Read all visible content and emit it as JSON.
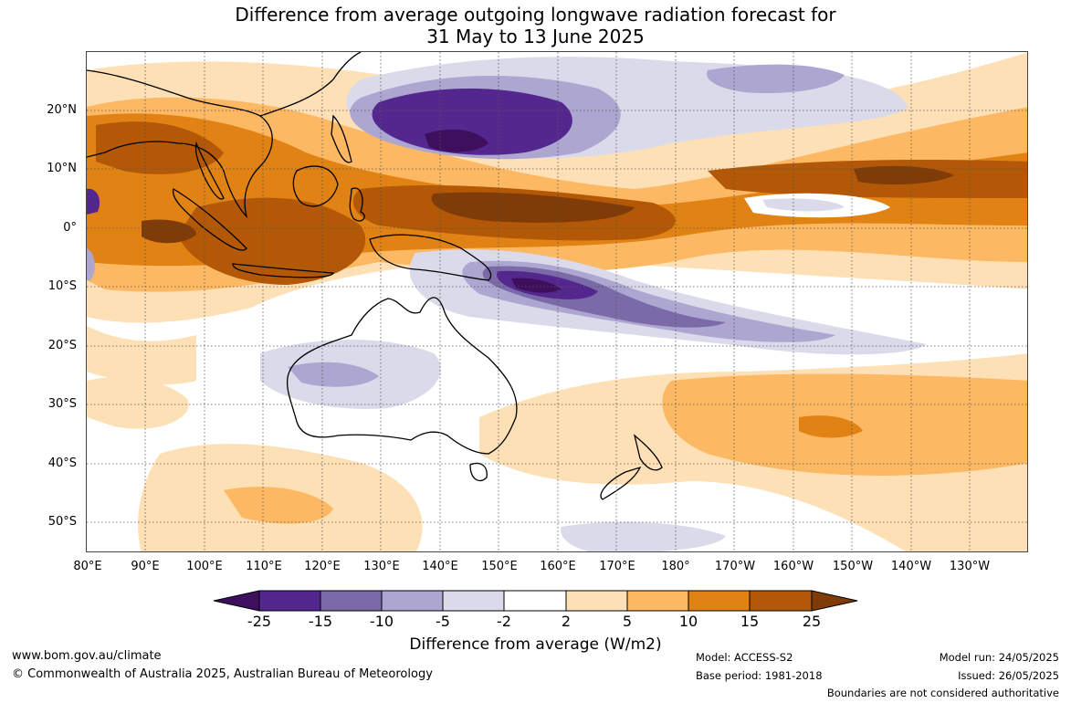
{
  "title_line1": "Difference from average outgoing longwave radiation forecast for",
  "title_line2": "31 May to 13 June 2025",
  "lat_labels": [
    "20°N",
    "10°N",
    "0°",
    "10°S",
    "20°S",
    "30°S",
    "40°S",
    "50°S"
  ],
  "lon_labels": [
    "80°E",
    "90°E",
    "100°E",
    "110°E",
    "120°E",
    "130°E",
    "140°E",
    "150°E",
    "160°E",
    "170°E",
    "180°",
    "170°W",
    "160°W",
    "150°W",
    "140°W",
    "130°W"
  ],
  "colorbar": {
    "ticks": [
      "-25",
      "-15",
      "-10",
      "-5",
      "-2",
      "2",
      "5",
      "10",
      "15",
      "25"
    ],
    "colors": [
      "#3d0f5c",
      "#54278f",
      "#7b6aa8",
      "#aca6d1",
      "#dadaeb",
      "#ffffff",
      "#fee0b6",
      "#fdb863",
      "#e08214",
      "#b35806",
      "#7f3b08"
    ],
    "title": "Difference from average (W/m2)"
  },
  "footer": {
    "url": "www.bom.gov.au/climate",
    "copyright": "© Commonwealth of Australia 2025, Australian Bureau of Meteorology",
    "model": "Model: ACCESS-S2",
    "base_period": "Base period: 1981-2018",
    "model_run": "Model run: 24/05/2025",
    "issued": "Issued: 26/05/2025",
    "disclaimer": "Boundaries are not considered authoritative"
  }
}
